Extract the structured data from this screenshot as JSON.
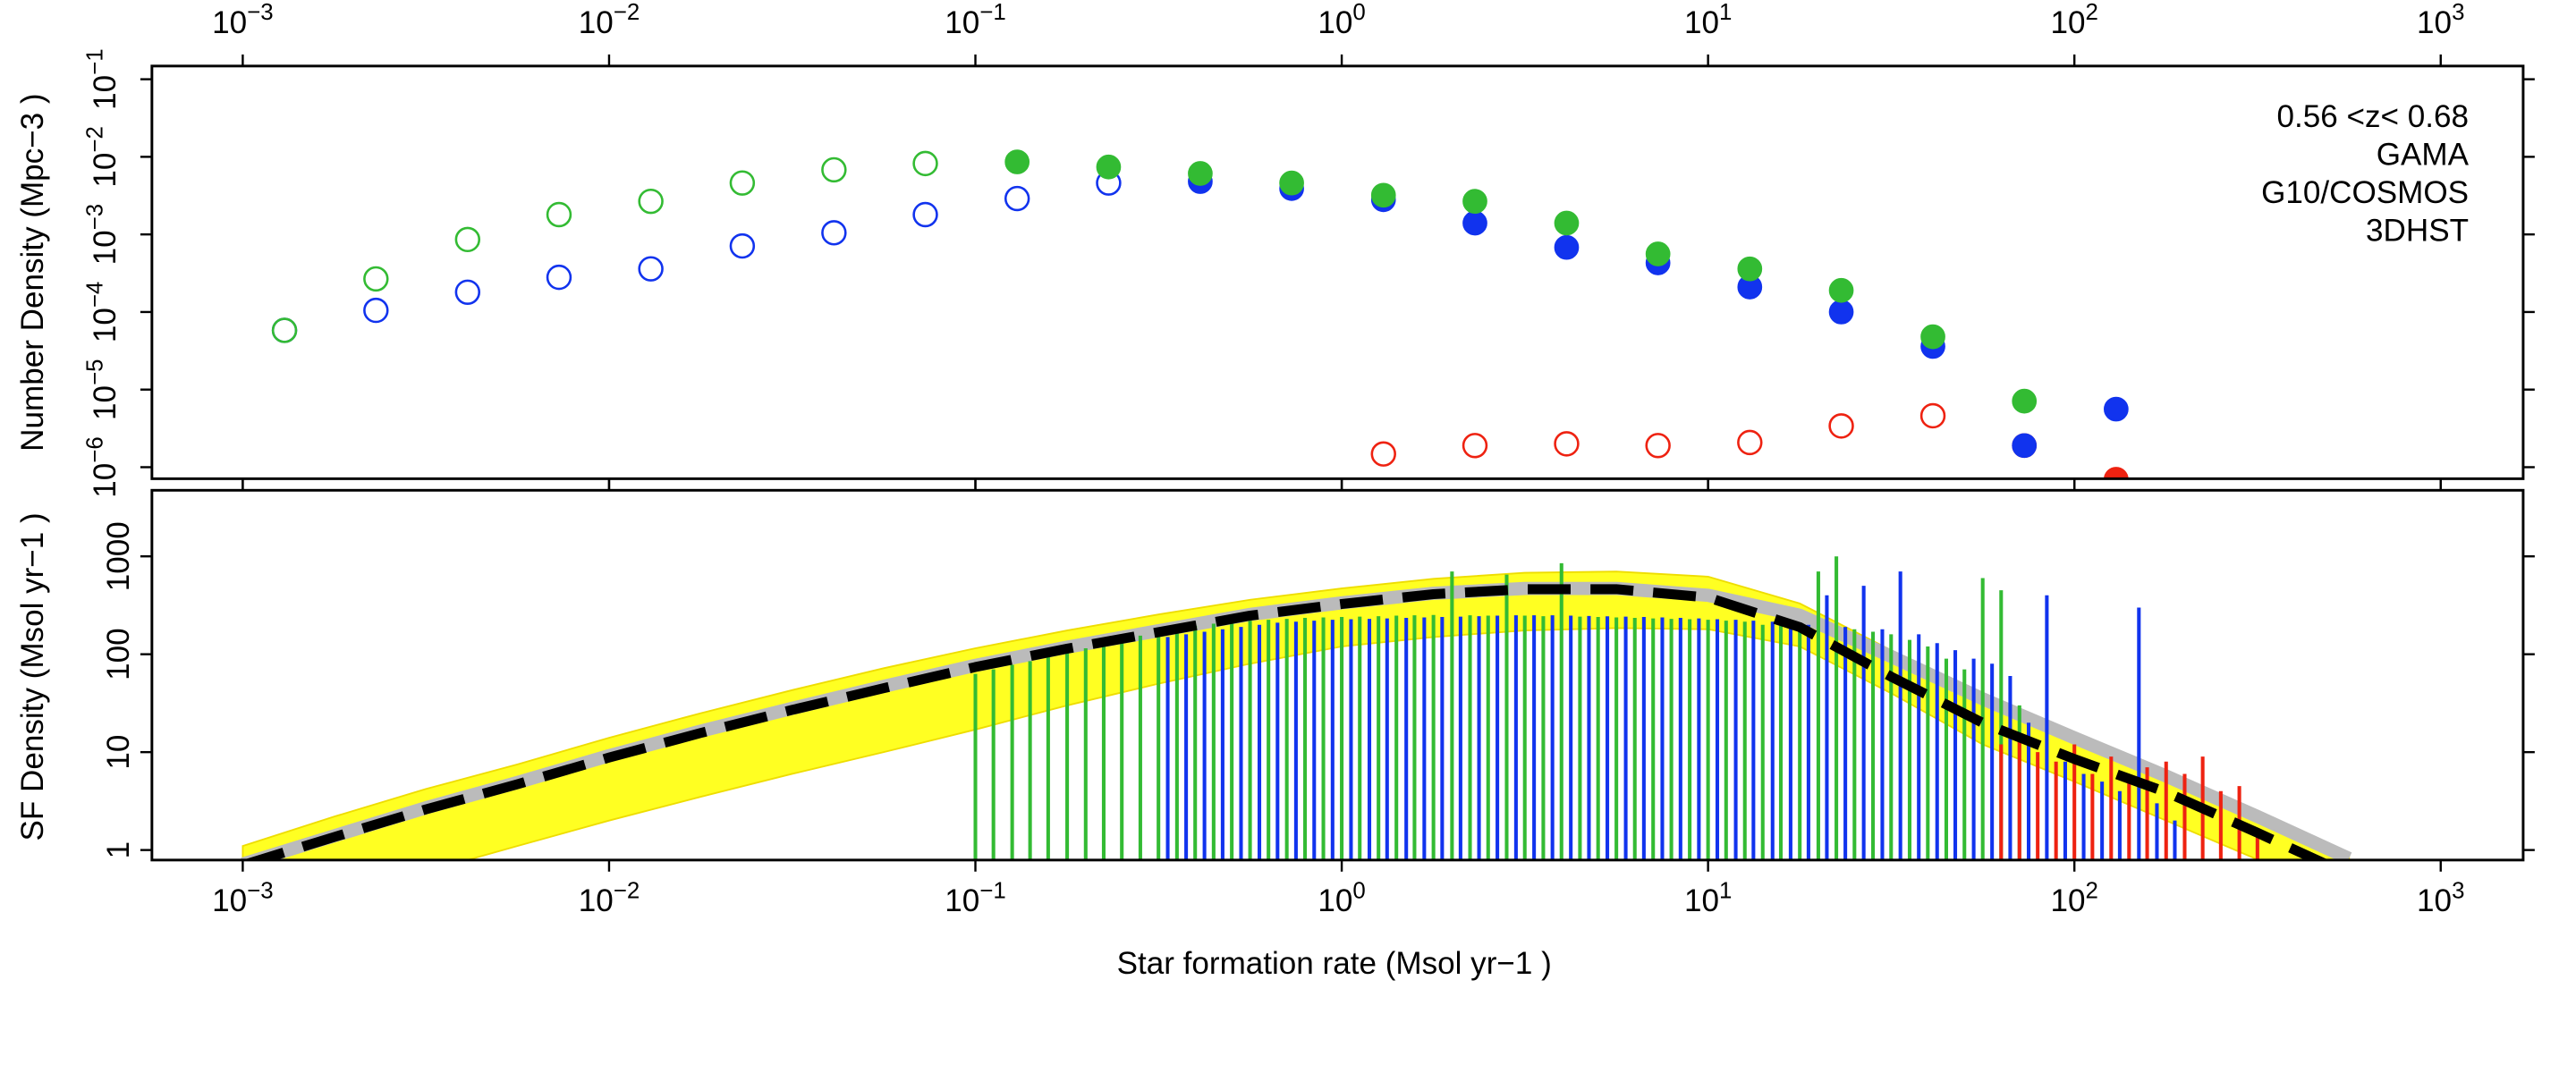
{
  "chart_data": [
    {
      "type": "scatter",
      "log_x": true,
      "log_y": true,
      "annotation": "0.56 <z< 0.68",
      "ylabel": "Number Density (Mpc−3 )",
      "xlim": [
        0.000565,
        1679
      ],
      "xticks": [
        {
          "value": 0.001,
          "label": "10−3"
        },
        {
          "value": 0.01,
          "label": "10−2"
        },
        {
          "value": 0.1,
          "label": "10−1"
        },
        {
          "value": 1,
          "label": "100"
        },
        {
          "value": 10,
          "label": "101"
        },
        {
          "value": 100,
          "label": "102"
        },
        {
          "value": 1000,
          "label": "103"
        }
      ],
      "ylim": [
        7.1e-07,
        0.148
      ],
      "yticks": [
        {
          "value": 1e-06,
          "label": "10−6"
        },
        {
          "value": 1e-05,
          "label": "10−5"
        },
        {
          "value": 0.0001,
          "label": "10−4"
        },
        {
          "value": 0.001,
          "label": "10−3"
        },
        {
          "value": 0.01,
          "label": "10−2"
        },
        {
          "value": 0.1,
          "label": "10−1"
        }
      ],
      "series": [
        {
          "name": "GAMA",
          "color": "#ee2211",
          "x": [
            1.3,
            2.31,
            4.11,
            7.3,
            13,
            23.1,
            41.1,
            73,
            130
          ],
          "values": [
            1.48e-06,
            1.9e-06,
            2e-06,
            1.9e-06,
            2.08e-06,
            3.4e-06,
            4.6e-06,
            1.9e-06,
            7e-07
          ],
          "open": [
            true,
            true,
            true,
            true,
            true,
            true,
            true,
            false,
            false
          ]
        },
        {
          "name": "G10/COSMOS",
          "color": "#1133ee",
          "x": [
            0.0013,
            0.00231,
            0.00411,
            0.0073,
            0.013,
            0.0231,
            0.0411,
            0.073,
            0.13,
            0.231,
            0.411,
            0.73,
            1.3,
            2.31,
            4.11,
            7.3,
            13,
            23.1,
            41.1,
            73,
            130
          ],
          "values": [
            5.8e-05,
            0.000105,
            0.00018,
            0.00028,
            0.00036,
            0.00071,
            0.00105,
            0.0018,
            0.0029,
            0.0046,
            0.0048,
            0.0039,
            0.0028,
            0.0014,
            0.00068,
            0.00043,
            0.00021,
            0.0001,
            3.6e-05,
            1.9e-06,
            5.6e-06
          ],
          "open": [
            true,
            true,
            true,
            true,
            true,
            true,
            true,
            true,
            true,
            true,
            false,
            false,
            false,
            false,
            false,
            false,
            false,
            false,
            false,
            false,
            false
          ]
        },
        {
          "name": "3DHST",
          "color": "#33bb33",
          "x": [
            0.0013,
            0.00231,
            0.00411,
            0.0073,
            0.013,
            0.0231,
            0.0411,
            0.073,
            0.13,
            0.231,
            0.411,
            0.73,
            1.3,
            2.31,
            4.11,
            7.3,
            13,
            23.1,
            41.1,
            73
          ],
          "values": [
            5.8e-05,
            0.000267,
            0.00086,
            0.0018,
            0.00267,
            0.0046,
            0.0068,
            0.0082,
            0.0086,
            0.0074,
            0.0061,
            0.0046,
            0.0032,
            0.00267,
            0.0014,
            0.00056,
            0.00036,
            0.00019,
            4.8e-05,
            7.1e-06
          ],
          "open": [
            true,
            true,
            true,
            true,
            true,
            true,
            true,
            true,
            false,
            false,
            false,
            false,
            false,
            false,
            false,
            false,
            false,
            false,
            false,
            false
          ]
        }
      ]
    },
    {
      "type": "line",
      "log_x": true,
      "log_y": true,
      "ylabel": "SF Density (Msol yr−1 )",
      "xlabel": "Star formation rate (Msol yr−1 )",
      "xlim": [
        0.000565,
        1679
      ],
      "xticks": [
        {
          "value": 0.001,
          "label": "10−3"
        },
        {
          "value": 0.01,
          "label": "10−2"
        },
        {
          "value": 0.1,
          "label": "10−1"
        },
        {
          "value": 1,
          "label": "100"
        },
        {
          "value": 10,
          "label": "101"
        },
        {
          "value": 100,
          "label": "102"
        },
        {
          "value": 1000,
          "label": "103"
        }
      ],
      "ylim": [
        0.79,
        4730
      ],
      "yticks": [
        1,
        10,
        100,
        1000
      ],
      "series": [
        {
          "kind": "band",
          "color": "#ffff22",
          "x": [
            0.001,
            0.00178,
            0.00316,
            0.00562,
            0.01,
            0.0178,
            0.0316,
            0.0562,
            0.1,
            0.178,
            0.316,
            0.562,
            1,
            1.78,
            3.16,
            5.62,
            10,
            17.8,
            31.6,
            56.2,
            100,
            178,
            316,
            562
          ],
          "lower": [
            0.15,
            0.3,
            0.6,
            1.1,
            2.0,
            3.5,
            6,
            10,
            17,
            30,
            50,
            80,
            120,
            150,
            175,
            185,
            180,
            120,
            40,
            12,
            5,
            2,
            0.8,
            0.3
          ],
          "upper": [
            1.1,
            2.2,
            4.2,
            7.5,
            14,
            25,
            43,
            72,
            115,
            175,
            255,
            360,
            470,
            590,
            680,
            700,
            620,
            330,
            110,
            38,
            15,
            6,
            2.4,
            0.9
          ]
        },
        {
          "kind": "line",
          "color": "#bbbbbb",
          "x": [
            0.001,
            0.00178,
            0.00316,
            0.00562,
            0.01,
            0.0178,
            0.0316,
            0.0562,
            0.1,
            0.178,
            0.316,
            0.562,
            1,
            1.78,
            3.16,
            5.62,
            10,
            17.8,
            31.6,
            56.2,
            100,
            178,
            316,
            562
          ],
          "values": [
            0.72,
            1.4,
            2.7,
            4.9,
            9.2,
            16.4,
            28,
            47,
            77,
            118,
            174,
            255,
            335,
            420,
            470,
            470,
            400,
            250,
            95,
            35,
            14,
            5.7,
            2.2,
            0.82
          ]
        },
        {
          "kind": "spikes",
          "color": "#33bb33",
          "x": [
            0.1,
            0.112,
            0.126,
            0.141,
            0.158,
            0.178,
            0.2,
            0.224,
            0.251,
            0.282,
            0.316,
            0.355,
            0.398,
            0.447,
            0.501,
            0.562,
            0.631,
            0.708,
            0.794,
            0.891,
            1,
            1.12,
            1.26,
            1.41,
            1.58,
            1.78,
            2,
            2.24,
            2.51,
            2.82,
            3.16,
            3.55,
            3.98,
            4.47,
            5.01,
            5.62,
            6.31,
            7.08,
            7.94,
            8.91,
            10,
            11.2,
            12.6,
            14.1,
            15.8,
            17.8,
            20,
            22.4,
            25.1,
            28.2,
            31.6,
            35.5,
            39.8,
            44.7,
            50.1,
            56.2,
            63.1,
            70.8
          ],
          "values": [
            63,
            70,
            78,
            85,
            95,
            105,
            115,
            128,
            140,
            155,
            170,
            185,
            195,
            205,
            215,
            220,
            225,
            230,
            235,
            238,
            240,
            242,
            245,
            248,
            250,
            252,
            700,
            250,
            248,
            650,
            248,
            245,
            850,
            242,
            240,
            238,
            235,
            232,
            230,
            228,
            225,
            220,
            215,
            200,
            195,
            190,
            700,
            1000,
            180,
            170,
            160,
            140,
            120,
            90,
            70,
            600,
            450,
            30
          ]
        },
        {
          "kind": "spikes",
          "color": "#1133ee",
          "x": [
            0.335,
            0.376,
            0.422,
            0.473,
            0.531,
            0.596,
            0.668,
            0.75,
            0.841,
            0.944,
            1.06,
            1.19,
            1.33,
            1.5,
            1.68,
            1.88,
            2.11,
            2.37,
            2.66,
            2.99,
            3.35,
            3.76,
            4.22,
            4.73,
            5.31,
            5.96,
            6.68,
            7.5,
            8.41,
            9.44,
            10.6,
            11.9,
            13.3,
            15,
            16.8,
            18.8,
            21.1,
            23.7,
            26.6,
            29.9,
            33.5,
            37.6,
            42.2,
            47.3,
            53.1,
            59.6,
            66.8,
            75,
            84.1,
            94.4,
            106,
            119,
            133,
            150,
            168,
            188
          ],
          "values": [
            150,
            160,
            170,
            180,
            190,
            200,
            210,
            215,
            220,
            225,
            228,
            230,
            232,
            235,
            238,
            240,
            242,
            245,
            248,
            250,
            250,
            250,
            248,
            246,
            244,
            242,
            240,
            238,
            235,
            232,
            228,
            225,
            220,
            215,
            210,
            200,
            400,
            190,
            500,
            180,
            700,
            160,
            130,
            110,
            90,
            80,
            60,
            20,
            400,
            8,
            6,
            5,
            4,
            300,
            3,
            2
          ]
        },
        {
          "kind": "spikes",
          "color": "#ee2211",
          "x": [
            63.1,
            70.8,
            79.4,
            89.1,
            100,
            112,
            126,
            141,
            158,
            178,
            200,
            224,
            251,
            282,
            316
          ],
          "values": [
            12,
            14,
            10,
            8,
            12,
            6,
            9,
            5,
            7,
            8,
            6,
            9,
            4,
            4.5,
            1.5
          ]
        },
        {
          "kind": "line",
          "dash": true,
          "color": "#000000",
          "x": [
            0.001,
            0.00178,
            0.00316,
            0.00562,
            0.01,
            0.0178,
            0.0316,
            0.0562,
            0.1,
            0.178,
            0.316,
            0.562,
            1,
            1.78,
            3.16,
            5.62,
            10,
            17.8,
            31.6,
            56.2,
            100,
            178,
            316,
            562
          ],
          "values": [
            0.7,
            1.36,
            2.6,
            4.7,
            8.8,
            15.7,
            27,
            45,
            74,
            114,
            168,
            248,
            326,
            411,
            462,
            462,
            380,
            189,
            59,
            19.9,
            8.5,
            3.9,
            1.5,
            0.56
          ]
        }
      ]
    }
  ]
}
